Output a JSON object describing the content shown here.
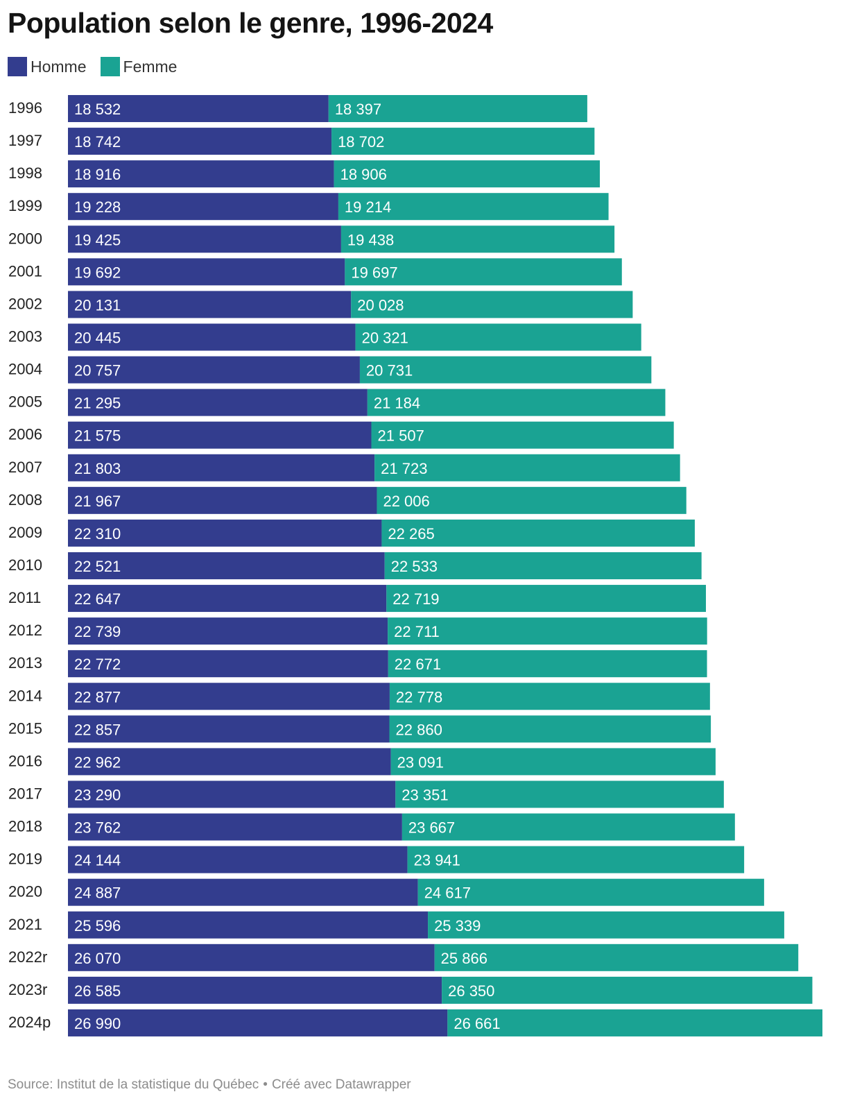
{
  "chart_data": {
    "type": "bar",
    "orientation": "horizontal",
    "stacked": true,
    "title": "Population selon le genre, 1996-2024",
    "categories": [
      "1996",
      "1997",
      "1998",
      "1999",
      "2000",
      "2001",
      "2002",
      "2003",
      "2004",
      "2005",
      "2006",
      "2007",
      "2008",
      "2009",
      "2010",
      "2011",
      "2012",
      "2013",
      "2014",
      "2015",
      "2016",
      "2017",
      "2018",
      "2019",
      "2020",
      "2021",
      "2022r",
      "2023r",
      "2024p"
    ],
    "series": [
      {
        "name": "Homme",
        "color": "#333d8e",
        "values": [
          18532,
          18742,
          18916,
          19228,
          19425,
          19692,
          20131,
          20445,
          20757,
          21295,
          21575,
          21803,
          21967,
          22310,
          22521,
          22647,
          22739,
          22772,
          22877,
          22857,
          22962,
          23290,
          23762,
          24144,
          24887,
          25596,
          26070,
          26585,
          26990
        ],
        "labels": [
          "18 532",
          "18 742",
          "18 916",
          "19 228",
          "19 425",
          "19 692",
          "20 131",
          "20 445",
          "20 757",
          "21 295",
          "21 575",
          "21 803",
          "21 967",
          "22 310",
          "22 521",
          "22 647",
          "22 739",
          "22 772",
          "22 877",
          "22 857",
          "22 962",
          "23 290",
          "23 762",
          "24 144",
          "24 887",
          "25 596",
          "26 070",
          "26 585",
          "26 990"
        ]
      },
      {
        "name": "Femme",
        "color": "#1aa393",
        "values": [
          18397,
          18702,
          18906,
          19214,
          19438,
          19697,
          20028,
          20321,
          20731,
          21184,
          21507,
          21723,
          22006,
          22265,
          22533,
          22719,
          22711,
          22671,
          22778,
          22860,
          23091,
          23351,
          23667,
          23941,
          24617,
          25339,
          25866,
          26350,
          26661
        ],
        "labels": [
          "18 397",
          "18 702",
          "18 906",
          "19 214",
          "19 438",
          "19 697",
          "20 028",
          "20 321",
          "20 731",
          "21 184",
          "21 507",
          "21 723",
          "22 006",
          "22 265",
          "22 533",
          "22 719",
          "22 711",
          "22 671",
          "22 778",
          "22 860",
          "23 091",
          "23 351",
          "23 667",
          "23 941",
          "24 617",
          "25 339",
          "25 866",
          "26 350",
          "26 661"
        ]
      }
    ],
    "xlim": [
      0,
      53651
    ],
    "legend_position": "top-left",
    "grid": false
  },
  "source": {
    "text": "Source: Institut de la statistique du Québec",
    "separator": "•",
    "credit": "Créé avec Datawrapper"
  },
  "colors": {
    "label_text": "#ffffff",
    "category_text": "#222222"
  }
}
